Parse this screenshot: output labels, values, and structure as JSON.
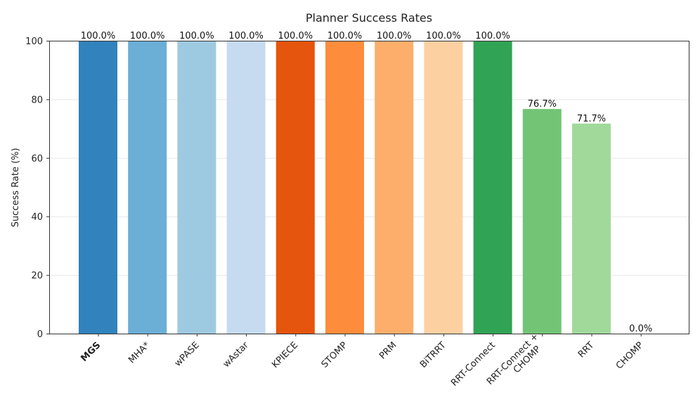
{
  "chart_data": {
    "type": "bar",
    "title": "Planner Success Rates",
    "xlabel": "",
    "ylabel": "Success Rate (%)",
    "ylim": [
      0,
      100
    ],
    "yticks": [
      "0",
      "20",
      "40",
      "60",
      "80",
      "100"
    ],
    "grid": true,
    "categories": [
      "MGS",
      "MHA*",
      "wPASE",
      "wAstar",
      "KPIECE",
      "STOMP",
      "PRM",
      "BiTRRT",
      "RRT-Connect",
      "RRT-Connect + CHOMP",
      "RRT",
      "CHOMP"
    ],
    "category_lines": [
      [
        "MGS"
      ],
      [
        "MHA*"
      ],
      [
        "wPASE"
      ],
      [
        "wAstar"
      ],
      [
        "KPIECE"
      ],
      [
        "STOMP"
      ],
      [
        "PRM"
      ],
      [
        "BiTRRT"
      ],
      [
        "RRT-Connect"
      ],
      [
        "RRT-Connect +",
        "CHOMP"
      ],
      [
        "RRT"
      ],
      [
        "CHOMP"
      ]
    ],
    "bold_categories": [
      "MGS"
    ],
    "values": [
      100.0,
      100.0,
      100.0,
      100.0,
      100.0,
      100.0,
      100.0,
      100.0,
      100.0,
      76.7,
      71.7,
      0.0
    ],
    "value_labels": [
      "100.0%",
      "100.0%",
      "100.0%",
      "100.0%",
      "100.0%",
      "100.0%",
      "100.0%",
      "100.0%",
      "100.0%",
      "76.7%",
      "71.7%",
      "0.0%"
    ],
    "colors": [
      "#3182bd",
      "#6baed6",
      "#9ecae1",
      "#c6dbef",
      "#e6550d",
      "#fd8d3c",
      "#fdae6b",
      "#fdd0a2",
      "#31a354",
      "#74c476",
      "#a1d99b",
      "#c7e9c0"
    ]
  }
}
